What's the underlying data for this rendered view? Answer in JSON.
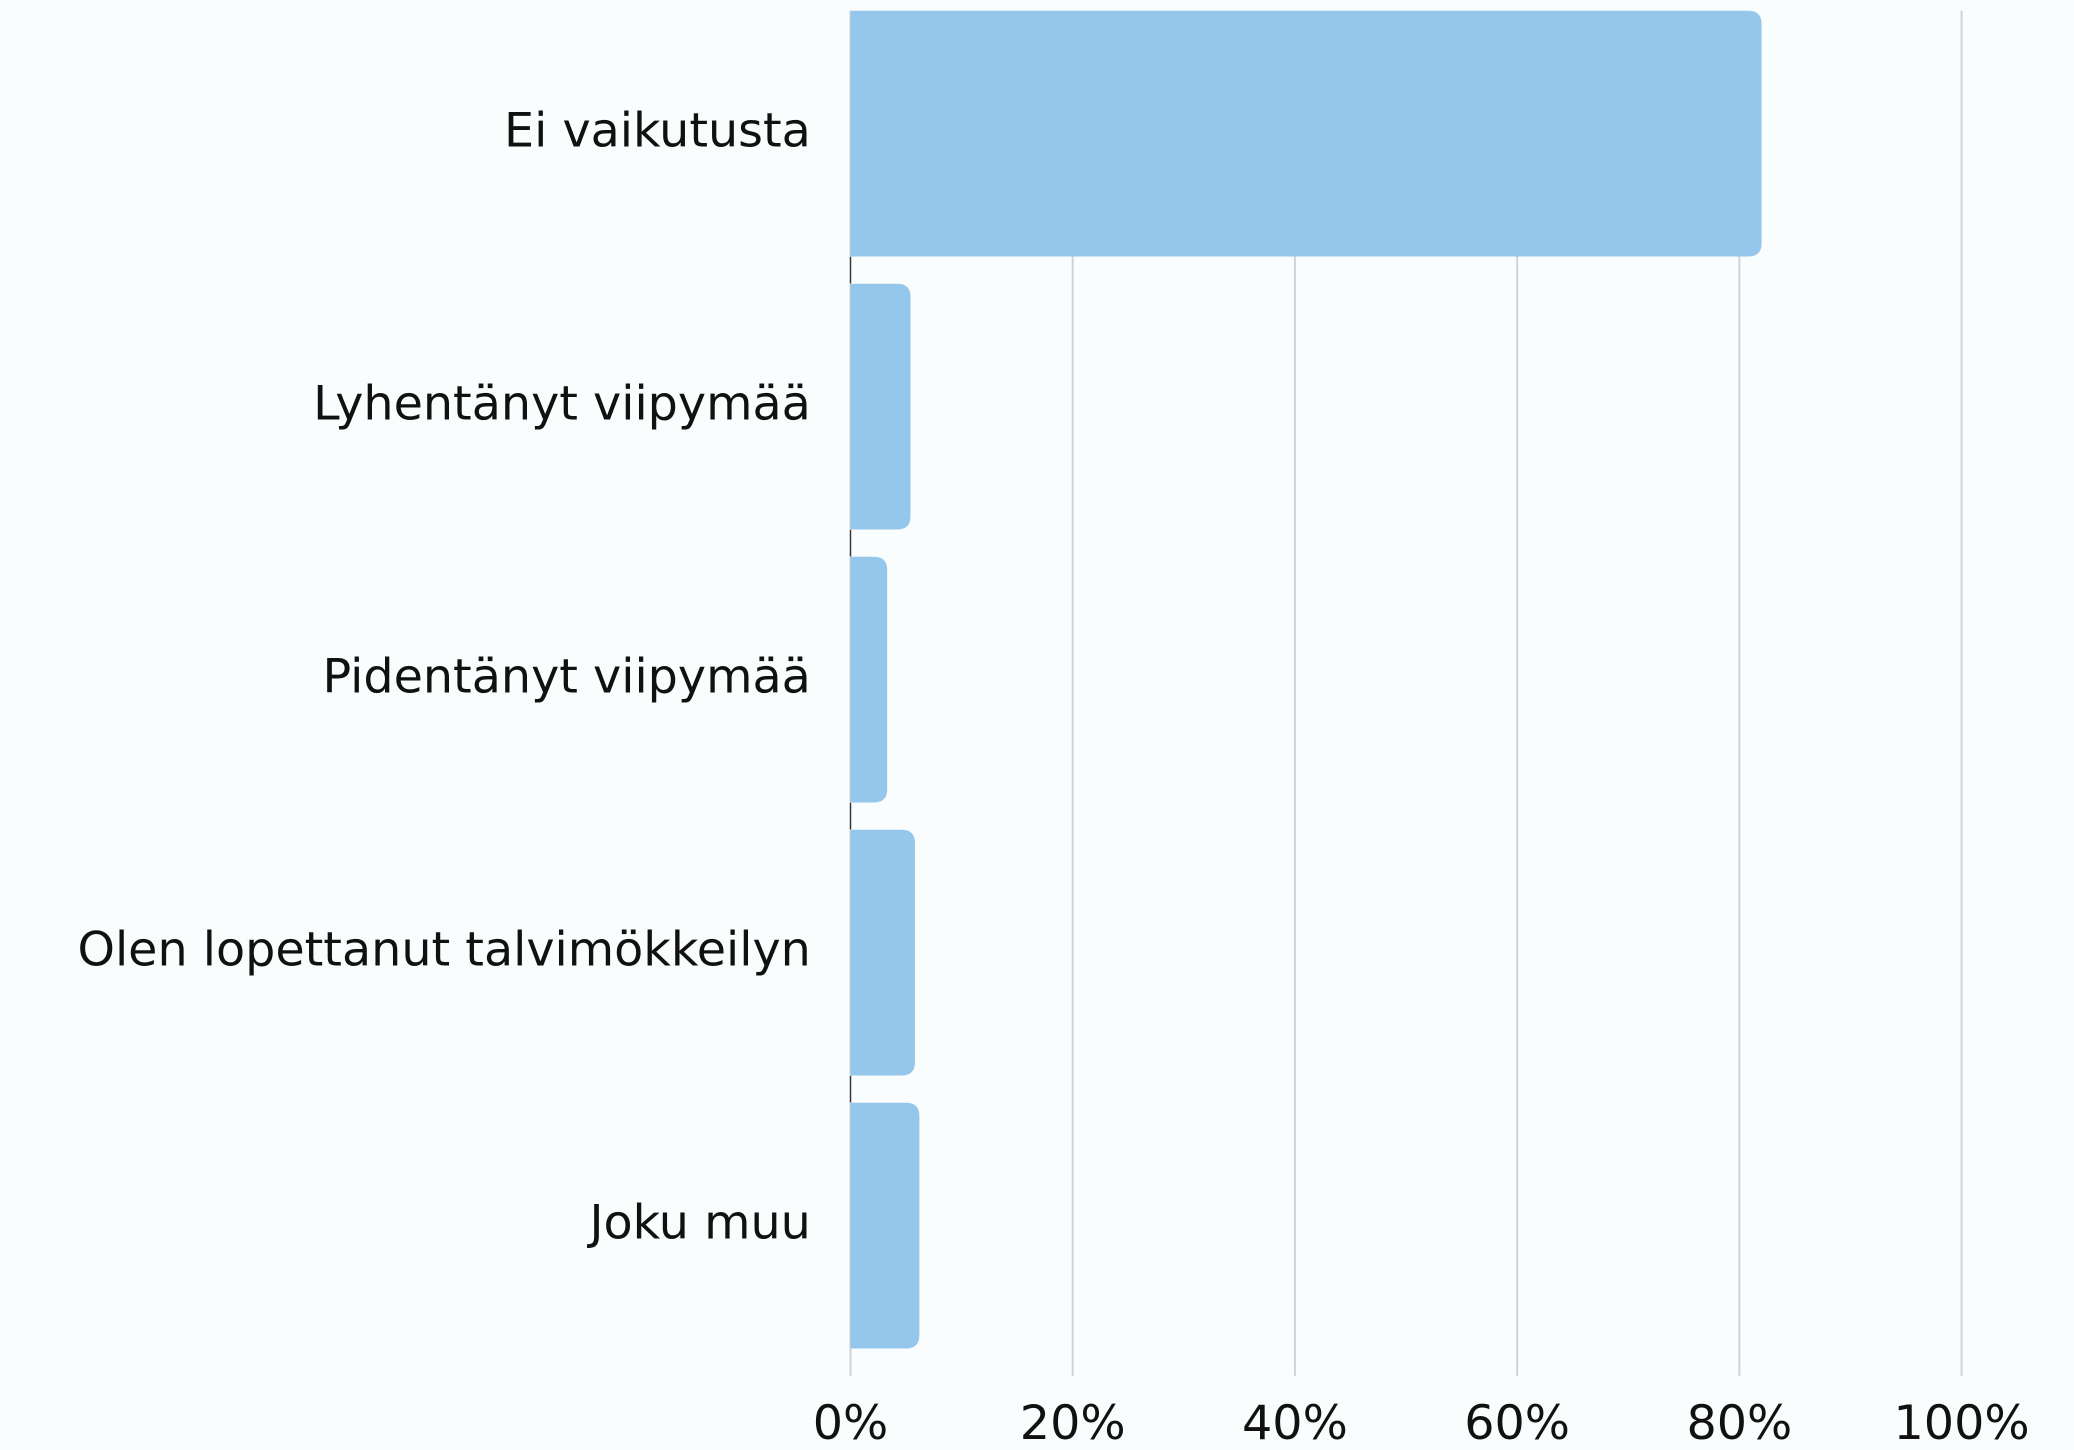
{
  "chart_data": {
    "type": "bar",
    "orientation": "horizontal",
    "categories": [
      "Ei vaikutusta",
      "Lyhentänyt viipymää",
      "Pidentänyt viipymää",
      "Olen lopettanut talvimökkeilyn",
      "Joku muu"
    ],
    "values": [
      82,
      5.4,
      3.3,
      5.8,
      6.2
    ],
    "color": "#95c6eb",
    "xlim": [
      0,
      100
    ],
    "xticks": [
      {
        "value": 0,
        "label": "0%"
      },
      {
        "value": 20,
        "label": "20%"
      },
      {
        "value": 40,
        "label": "40%"
      },
      {
        "value": 60,
        "label": "60%"
      },
      {
        "value": 80,
        "label": "80%"
      },
      {
        "value": 100,
        "label": "100%"
      }
    ],
    "grid": true
  }
}
